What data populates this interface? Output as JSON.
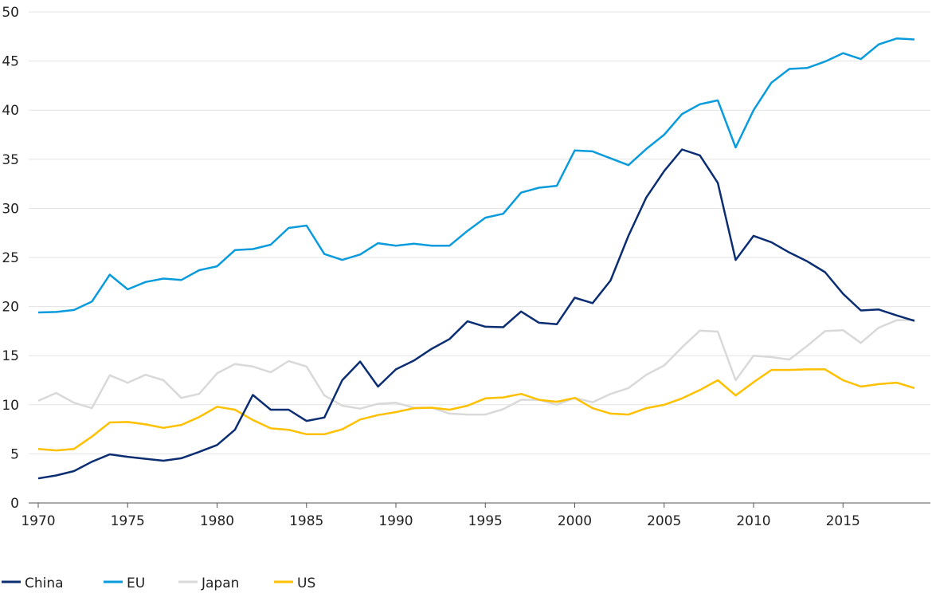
{
  "chart_data": {
    "type": "line",
    "title": "",
    "xlabel": "",
    "ylabel": "",
    "xlim": [
      1970,
      2019
    ],
    "ylim": [
      0,
      50
    ],
    "grid": "horizontal",
    "legend_placement": "bottom-left",
    "x_ticks": [
      "1970",
      "1975",
      "1980",
      "1985",
      "1990",
      "1995",
      "2000",
      "2005",
      "2010",
      "2015"
    ],
    "y_ticks": [
      "0",
      "5",
      "10",
      "15",
      "20",
      "25",
      "30",
      "35",
      "40",
      "45",
      "50"
    ],
    "x": [
      1970,
      1971,
      1972,
      1973,
      1974,
      1975,
      1976,
      1977,
      1978,
      1979,
      1980,
      1981,
      1982,
      1983,
      1984,
      1985,
      1986,
      1987,
      1988,
      1989,
      1990,
      1991,
      1992,
      1993,
      1994,
      1995,
      1996,
      1997,
      1998,
      1999,
      2000,
      2001,
      2002,
      2003,
      2004,
      2005,
      2006,
      2007,
      2008,
      2009,
      2010,
      2011,
      2012,
      2013,
      2014,
      2015,
      2016,
      2017,
      2018,
      2019
    ],
    "series": [
      {
        "name": "China",
        "color": "#0b2d72",
        "values": [
          2.5,
          2.8,
          3.25,
          4.2,
          4.95,
          4.7,
          4.5,
          4.3,
          4.55,
          5.2,
          5.9,
          7.45,
          11.0,
          9.5,
          9.5,
          8.35,
          8.7,
          12.5,
          14.4,
          11.85,
          13.6,
          14.5,
          15.7,
          16.7,
          18.5,
          17.95,
          17.9,
          19.5,
          18.35,
          18.2,
          20.9,
          20.35,
          22.65,
          27.2,
          31.1,
          33.8,
          36.0,
          35.4,
          32.6,
          24.75,
          27.2,
          26.55,
          25.5,
          24.6,
          23.5,
          21.3,
          19.6,
          19.7,
          19.1,
          18.55
        ]
      },
      {
        "name": "EU",
        "color": "#0a9bdc",
        "values": [
          19.4,
          19.45,
          19.65,
          20.5,
          23.25,
          21.75,
          22.5,
          22.85,
          22.7,
          23.7,
          24.1,
          25.75,
          25.85,
          26.3,
          28.0,
          28.25,
          25.35,
          24.75,
          25.3,
          26.45,
          26.2,
          26.4,
          26.2,
          26.2,
          27.7,
          29.05,
          29.45,
          31.6,
          32.1,
          32.3,
          35.9,
          35.8,
          35.1,
          34.4,
          36.05,
          37.5,
          39.6,
          40.6,
          41.0,
          36.2,
          40.0,
          42.8,
          44.2,
          44.3,
          44.95,
          45.8,
          45.2,
          46.7,
          47.3,
          47.2
        ]
      },
      {
        "name": "Japan",
        "color": "#d9d9d9",
        "values": [
          10.4,
          11.2,
          10.2,
          9.65,
          13.0,
          12.25,
          13.05,
          12.5,
          10.7,
          11.1,
          13.2,
          14.15,
          13.9,
          13.3,
          14.45,
          13.9,
          10.95,
          9.9,
          9.6,
          10.1,
          10.2,
          9.7,
          9.7,
          9.1,
          9.0,
          9.0,
          9.55,
          10.5,
          10.5,
          10.0,
          10.7,
          10.25,
          11.1,
          11.7,
          13.05,
          14.0,
          15.85,
          17.55,
          17.45,
          12.5,
          15.0,
          14.85,
          14.6,
          16.0,
          17.5,
          17.6,
          16.3,
          17.85,
          18.6,
          18.65
        ]
      },
      {
        "name": "US",
        "color": "#ffc000",
        "values": [
          5.5,
          5.35,
          5.5,
          6.75,
          8.2,
          8.25,
          8.0,
          7.65,
          7.95,
          8.75,
          9.8,
          9.5,
          8.45,
          7.6,
          7.45,
          7.0,
          7.0,
          7.5,
          8.5,
          8.95,
          9.25,
          9.65,
          9.7,
          9.5,
          9.9,
          10.65,
          10.75,
          11.1,
          10.5,
          10.3,
          10.7,
          9.65,
          9.1,
          9.0,
          9.65,
          10.0,
          10.65,
          11.5,
          12.5,
          10.95,
          12.3,
          13.55,
          13.55,
          13.6,
          13.6,
          12.5,
          11.85,
          12.1,
          12.25,
          11.7
        ]
      }
    ]
  }
}
